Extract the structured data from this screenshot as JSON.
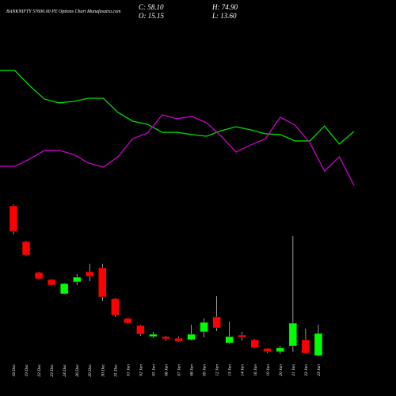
{
  "chart_data": [
    {
      "type": "candlestick",
      "title": "BANKNIFTY 57600.00 PE Options Chart Munafasutra.com",
      "ohlc_labels": [
        "C: 58.10",
        "H: 74.90",
        "O: 15.15",
        "L: 13.60"
      ],
      "categories": [
        "18 Dec",
        "19 Dec",
        "22 Dec",
        "23 Dec",
        "24 Dec",
        "26 Dec",
        "29 Dec",
        "30 Dec",
        "31 Dec",
        "01 Jan",
        "02 Jan",
        "05 Jan",
        "06 Jan",
        "07 Jan",
        "08 Jan",
        "09 Jan",
        "12 Jan",
        "13 Jan",
        "14 Jan",
        "16 Jan",
        "19 Jan",
        "20 Jan",
        "21 Jan",
        "22 Jan",
        "23 Jan"
      ],
      "open": [
        304.4,
        235.5,
        175.8,
        162.1,
        134.5,
        157.5,
        177.4,
        185,
        125.3,
        87.1,
        73.3,
        51.9,
        51.9,
        48.8,
        45.8,
        61.1,
        90.2,
        39.7,
        55,
        45.8,
        29,
        22.8,
        33.5,
        45.8,
        15.15
      ],
      "high": [
        307.4,
        237,
        177.4,
        163.6,
        155.9,
        172.8,
        192.7,
        192.7,
        126.9,
        88.6,
        74.9,
        61.1,
        53.4,
        51.9,
        74.9,
        87.1,
        129.9,
        81,
        61.1,
        47.3,
        30.5,
        33.5,
        246.2,
        67.2,
        74.9
      ],
      "low": [
        249.3,
        208,
        162.1,
        149.8,
        133,
        151.4,
        159,
        120.8,
        90.2,
        76.4,
        53.4,
        48.8,
        44.3,
        41.2,
        44.3,
        50.4,
        62.6,
        38.1,
        44.3,
        29,
        19.8,
        18.2,
        22.8,
        18.2,
        13.6
      ],
      "close": [
        255.4,
        209.5,
        163.6,
        151.4,
        154.4,
        166.7,
        168.2,
        128.4,
        93.2,
        77.9,
        56.5,
        56.5,
        47.3,
        42.7,
        56.5,
        79.4,
        68.7,
        51.9,
        50.4,
        30.5,
        22.8,
        30.5,
        77.9,
        19.8,
        58.1
      ],
      "up_color": "#00ff00",
      "down_color": "#ff0000",
      "wick_color": "#ffffff",
      "ylim": [
        6,
        312
      ]
    },
    {
      "type": "line",
      "series": [
        {
          "color": "#00dd00",
          "values": [
            94.4,
            94.4,
            82.5,
            71.9,
            68.8,
            70,
            72.5,
            72.5,
            61.3,
            54.4,
            51.9,
            45.6,
            45.6,
            43.8,
            42.5,
            46.9,
            50,
            47.5,
            44.4,
            43.8,
            38.8,
            38.8,
            50.6,
            36.3,
            46.3
          ]
        },
        {
          "color": "#cc00cc",
          "values": [
            18.8,
            18.8,
            24.4,
            31.3,
            31.3,
            28.1,
            21.3,
            18.1,
            26.3,
            40.6,
            45,
            59.4,
            56.3,
            58.1,
            53.1,
            42.5,
            30,
            35.6,
            40.6,
            57.5,
            51.3,
            37.5,
            15,
            26.3,
            3.8
          ]
        }
      ],
      "ylim": [
        0,
        100
      ]
    }
  ]
}
